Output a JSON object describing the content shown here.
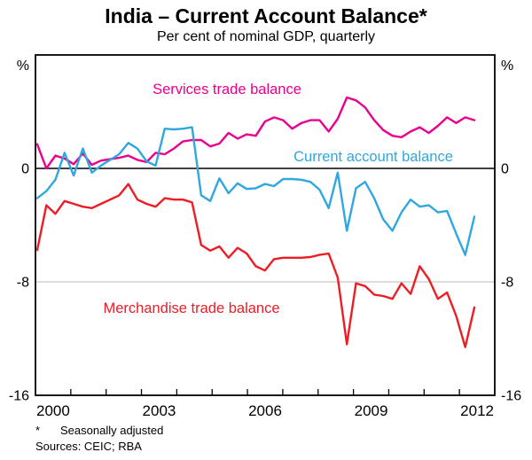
{
  "footnotes": {
    "marker": "*",
    "note": "Seasonally adjusted",
    "sources": "Sources: CEIC; RBA"
  },
  "chart_data": {
    "type": "line",
    "title": "India – Current Account Balance*",
    "subtitle": "Per cent of nominal GDP, quarterly",
    "unit_label_left": "%",
    "unit_label_right": "%",
    "ylim": [
      -16,
      8
    ],
    "y_ticks": [
      0,
      -8,
      -16
    ],
    "y_tick_labels": [
      "0",
      "-8",
      "-16"
    ],
    "grid_y": [
      -8
    ],
    "zero_line": true,
    "x_start_year": 2000,
    "x_end_year": 2013,
    "x_tick_labels": [
      "2000",
      "2003",
      "2006",
      "2009",
      "2012"
    ],
    "legend_position": "inline-labels",
    "grid": "horizontal-only",
    "colors": {
      "axis": "#000000",
      "grid": "#c8c8c8"
    },
    "quarters": [
      "2000Q1",
      "2000Q2",
      "2000Q3",
      "2000Q4",
      "2001Q1",
      "2001Q2",
      "2001Q3",
      "2001Q4",
      "2002Q1",
      "2002Q2",
      "2002Q3",
      "2002Q4",
      "2003Q1",
      "2003Q2",
      "2003Q3",
      "2003Q4",
      "2004Q1",
      "2004Q2",
      "2004Q3",
      "2004Q4",
      "2005Q1",
      "2005Q2",
      "2005Q3",
      "2005Q4",
      "2006Q1",
      "2006Q2",
      "2006Q3",
      "2006Q4",
      "2007Q1",
      "2007Q2",
      "2007Q3",
      "2007Q4",
      "2008Q1",
      "2008Q2",
      "2008Q3",
      "2008Q4",
      "2009Q1",
      "2009Q2",
      "2009Q3",
      "2009Q4",
      "2010Q1",
      "2010Q2",
      "2010Q3",
      "2010Q4",
      "2011Q1",
      "2011Q2",
      "2011Q3",
      "2011Q4",
      "2012Q1"
    ],
    "series": [
      {
        "name": "Services trade balance",
        "color": "#ea008c",
        "values": [
          1.7,
          0.0,
          0.9,
          0.7,
          0.3,
          1.05,
          0.25,
          0.55,
          0.65,
          0.75,
          0.9,
          0.6,
          0.45,
          1.1,
          1.0,
          1.4,
          1.9,
          2.0,
          2.0,
          1.55,
          1.75,
          2.5,
          2.1,
          2.4,
          2.3,
          3.3,
          3.6,
          3.4,
          2.8,
          3.2,
          3.4,
          3.4,
          2.6,
          3.5,
          5.0,
          4.8,
          4.3,
          3.4,
          2.7,
          2.3,
          2.2,
          2.6,
          2.9,
          2.5,
          3.0,
          3.6,
          3.2,
          3.6,
          3.4
        ]
      },
      {
        "name": "Current account balance",
        "color": "#30a7df",
        "values": [
          -2.1,
          -1.6,
          -0.8,
          1.1,
          -0.5,
          1.4,
          -0.3,
          0.2,
          0.6,
          1.0,
          1.8,
          1.4,
          0.5,
          0.2,
          2.8,
          2.75,
          2.8,
          2.9,
          -1.9,
          -2.3,
          -0.7,
          -1.75,
          -1.05,
          -1.45,
          -1.4,
          -1.1,
          -1.25,
          -0.75,
          -0.75,
          -0.8,
          -0.95,
          -1.5,
          -2.8,
          -0.3,
          -4.4,
          -1.4,
          -0.95,
          -2.1,
          -3.6,
          -4.4,
          -3.1,
          -2.2,
          -2.7,
          -2.6,
          -3.1,
          -3.0,
          -4.6,
          -6.1,
          -3.4
        ]
      },
      {
        "name": "Merchandise trade balance",
        "color": "#ee1c25",
        "values": [
          -5.75,
          -2.6,
          -3.2,
          -2.3,
          -2.5,
          -2.7,
          -2.8,
          -2.5,
          -2.2,
          -1.9,
          -1.1,
          -2.2,
          -2.5,
          -2.7,
          -2.1,
          -2.2,
          -2.2,
          -2.4,
          -5.4,
          -5.8,
          -5.5,
          -6.3,
          -5.6,
          -6.0,
          -6.9,
          -7.2,
          -6.4,
          -6.3,
          -6.3,
          -6.3,
          -6.25,
          -6.1,
          -6.0,
          -7.7,
          -12.4,
          -8.1,
          -8.3,
          -8.9,
          -9.0,
          -9.2,
          -8.1,
          -8.85,
          -6.9,
          -7.8,
          -9.2,
          -8.75,
          -10.4,
          -12.6,
          -9.8
        ]
      }
    ]
  }
}
